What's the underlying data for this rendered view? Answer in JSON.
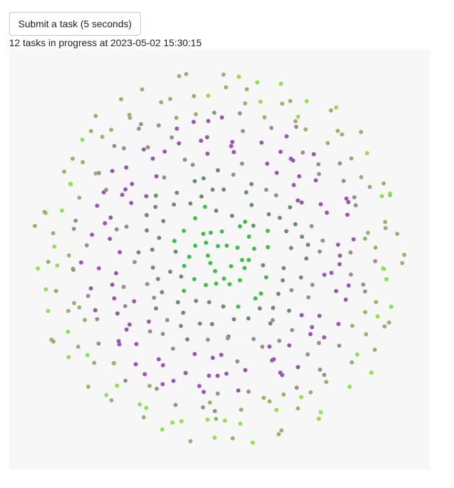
{
  "controls": {
    "submit_label": "Submit a task (5 seconds)"
  },
  "status": {
    "text": "12 tasks in progress at 2023-05-02 15:30:15"
  },
  "colors": {
    "panel_background": "#f7f7f7",
    "inner": "#3cc145",
    "mid": "#6b8f6b",
    "outer_purple": "#9a55b5",
    "outer_gray": "#9b8f8a",
    "rim_olive": "#9fb06a",
    "rim_green": "#8ee24a"
  },
  "chart_data": {
    "type": "scatter",
    "title": "",
    "xlabel": "",
    "ylabel": "",
    "grid": false,
    "legend": "none",
    "description_free": true
  }
}
